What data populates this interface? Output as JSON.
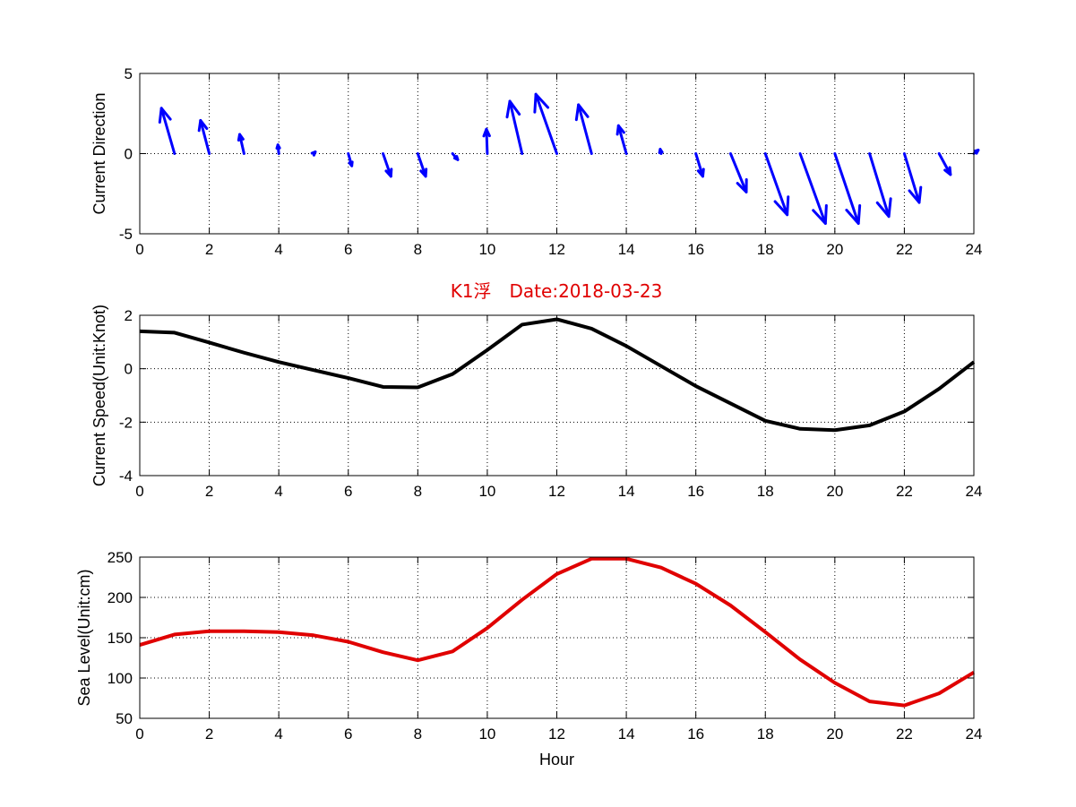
{
  "figure_title": "K1浮　Date:2018-03-23",
  "colors": {
    "title": "#e00000",
    "vectors": "#0000ff",
    "speed_line": "#000000",
    "sea_level_line": "#e00000",
    "grid": "#000000",
    "frame": "#000000"
  },
  "chart_data": [
    {
      "type": "quiver",
      "ylabel": "Current Direction",
      "xlabel": "",
      "xlim": [
        0,
        24
      ],
      "ylim": [
        -5,
        5
      ],
      "x_ticks": [
        0,
        2,
        4,
        6,
        8,
        10,
        12,
        14,
        16,
        18,
        20,
        22,
        24
      ],
      "y_ticks": [
        5,
        0,
        -5
      ],
      "grid": true,
      "x": [
        1,
        2,
        3,
        4,
        5,
        6,
        7,
        8,
        9,
        10,
        11,
        12,
        13,
        14,
        15,
        16,
        17,
        18,
        19,
        20,
        21,
        22,
        23,
        24
      ],
      "u": [
        -0.75,
        -0.5,
        -0.25,
        -0.05,
        0.1,
        0.2,
        0.45,
        0.45,
        0.3,
        -0.05,
        -0.7,
        -1.2,
        -0.75,
        -0.45,
        -0.05,
        0.4,
        0.9,
        1.25,
        1.45,
        1.35,
        1.1,
        0.85,
        0.65,
        0.25
      ],
      "v": [
        2.6,
        1.9,
        1.1,
        0.5,
        0.1,
        -0.7,
        -1.3,
        -1.3,
        -0.35,
        1.4,
        3.0,
        3.4,
        2.8,
        1.6,
        0.25,
        -1.3,
        -2.2,
        -3.5,
        -4.0,
        -4.0,
        -3.6,
        -2.8,
        -1.2,
        0.2
      ]
    },
    {
      "type": "line",
      "ylabel": "Current Speed(Unit:Knot)",
      "xlabel": "",
      "xlim": [
        0,
        24
      ],
      "ylim": [
        -4,
        2
      ],
      "x_ticks": [
        0,
        2,
        4,
        6,
        8,
        10,
        12,
        14,
        16,
        18,
        20,
        22,
        24
      ],
      "y_ticks": [
        2,
        0,
        -2,
        -4
      ],
      "grid": true,
      "x": [
        0,
        1,
        2,
        3,
        4,
        5,
        6,
        7,
        8,
        9,
        10,
        11,
        12,
        13,
        14,
        15,
        16,
        17,
        18,
        19,
        20,
        21,
        22,
        23,
        24
      ],
      "values": [
        1.4,
        1.35,
        0.98,
        0.6,
        0.25,
        -0.05,
        -0.35,
        -0.68,
        -0.7,
        -0.2,
        0.7,
        1.65,
        1.85,
        1.5,
        0.85,
        0.1,
        -0.65,
        -1.3,
        -1.95,
        -2.25,
        -2.3,
        -2.12,
        -1.6,
        -0.75,
        0.25
      ]
    },
    {
      "type": "line",
      "ylabel": "Sea Level(Unit:cm)",
      "xlabel": "Hour",
      "xlim": [
        0,
        24
      ],
      "ylim": [
        50,
        250
      ],
      "x_ticks": [
        0,
        2,
        4,
        6,
        8,
        10,
        12,
        14,
        16,
        18,
        20,
        22,
        24
      ],
      "y_ticks": [
        250,
        200,
        150,
        100,
        50
      ],
      "grid": true,
      "x": [
        0,
        1,
        2,
        3,
        4,
        5,
        6,
        7,
        8,
        9,
        10,
        11,
        12,
        13,
        14,
        15,
        16,
        17,
        18,
        19,
        20,
        21,
        22,
        23,
        24
      ],
      "values": [
        141,
        154,
        158,
        158,
        157,
        153,
        145,
        132,
        122,
        133,
        162,
        197,
        229,
        248,
        248,
        237,
        217,
        190,
        157,
        123,
        94,
        71,
        66,
        81,
        107
      ]
    }
  ]
}
